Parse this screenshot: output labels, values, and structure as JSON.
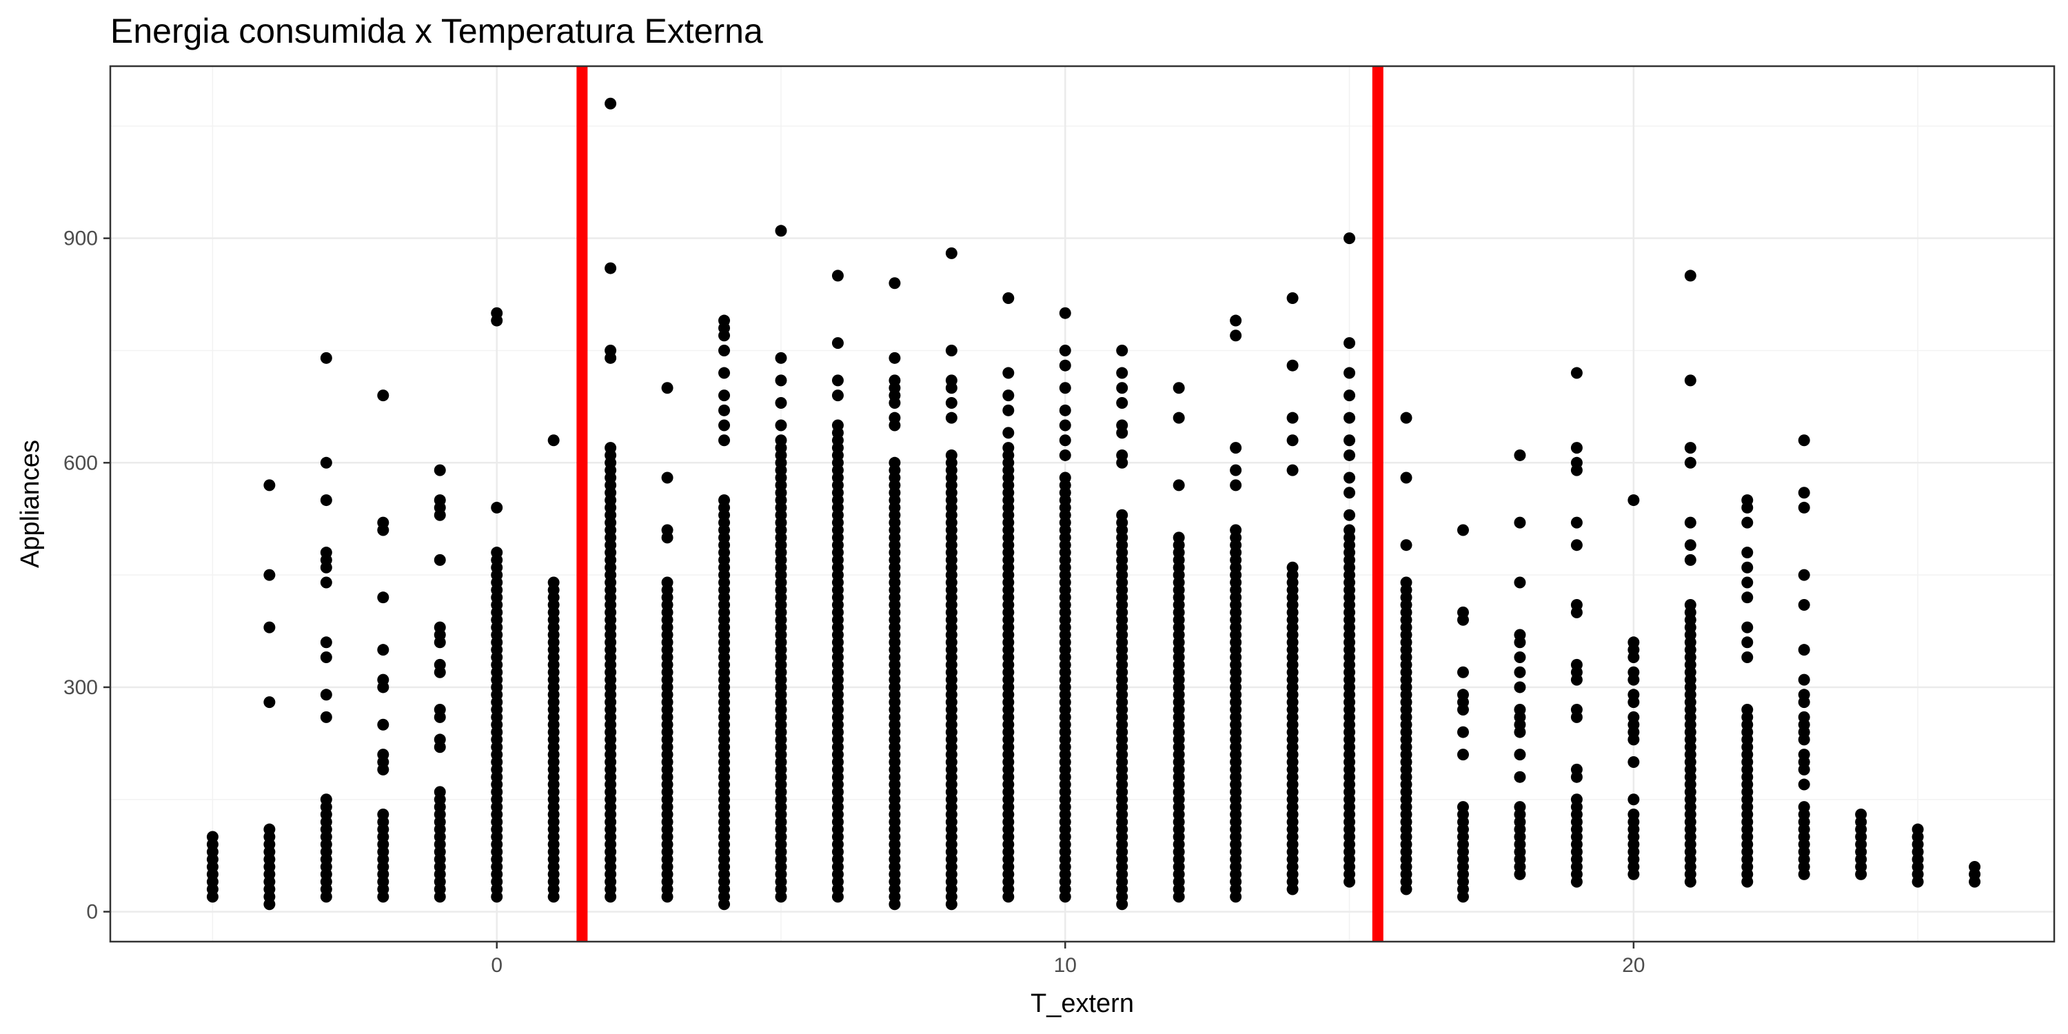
{
  "chart_data": {
    "type": "scatter",
    "title": "Energia consumida x Temperatura Externa",
    "xlabel": "T_extern",
    "ylabel": "Appliances",
    "xlim": [
      -6.8,
      27.4
    ],
    "ylim": [
      -40,
      1130
    ],
    "x_ticks": [
      0,
      10,
      20
    ],
    "x_tick_labels": [
      "0",
      "10",
      "20"
    ],
    "x_minor": [
      -5,
      5,
      15,
      25
    ],
    "y_ticks": [
      0,
      300,
      600,
      900
    ],
    "y_tick_labels": [
      "0",
      "300",
      "600",
      "900"
    ],
    "y_minor": [
      150,
      450,
      750,
      1050
    ],
    "grid": true,
    "theme": "bw",
    "point_color": "#000000",
    "vline_color": "#ff0000",
    "vlines": [
      1.5,
      15.5
    ],
    "columns": [
      {
        "x": -5,
        "min": 20,
        "max": 100,
        "outliers": []
      },
      {
        "x": -4,
        "min": 10,
        "max": 110,
        "outliers": [
          280,
          380,
          450,
          570
        ]
      },
      {
        "x": -3,
        "min": 20,
        "max": 150,
        "outliers": [
          260,
          290,
          340,
          360,
          440,
          460,
          470,
          480,
          550,
          600,
          740
        ]
      },
      {
        "x": -2,
        "min": 20,
        "max": 130,
        "outliers": [
          190,
          200,
          210,
          250,
          300,
          310,
          350,
          420,
          510,
          520,
          690
        ]
      },
      {
        "x": -1,
        "min": 20,
        "max": 160,
        "outliers": [
          220,
          230,
          260,
          270,
          320,
          330,
          360,
          370,
          380,
          470,
          530,
          540,
          550,
          590
        ]
      },
      {
        "x": 0,
        "min": 20,
        "max": 480,
        "outliers": [
          540,
          790,
          800
        ]
      },
      {
        "x": 1,
        "min": 20,
        "max": 440,
        "outliers": [
          630
        ]
      },
      {
        "x": 2,
        "min": 20,
        "max": 620,
        "outliers": [
          740,
          750,
          860,
          1080
        ]
      },
      {
        "x": 3,
        "min": 20,
        "max": 440,
        "outliers": [
          500,
          510,
          580,
          700
        ]
      },
      {
        "x": 4,
        "min": 10,
        "max": 550,
        "outliers": [
          630,
          650,
          670,
          690,
          720,
          750,
          770,
          780,
          790
        ]
      },
      {
        "x": 5,
        "min": 20,
        "max": 630,
        "outliers": [
          650,
          680,
          710,
          740,
          910
        ]
      },
      {
        "x": 6,
        "min": 20,
        "max": 650,
        "outliers": [
          690,
          710,
          760,
          850
        ]
      },
      {
        "x": 7,
        "min": 10,
        "max": 600,
        "outliers": [
          650,
          660,
          680,
          690,
          700,
          710,
          740,
          840
        ]
      },
      {
        "x": 8,
        "min": 10,
        "max": 610,
        "outliers": [
          660,
          680,
          700,
          710,
          750,
          880
        ]
      },
      {
        "x": 9,
        "min": 20,
        "max": 620,
        "outliers": [
          640,
          670,
          690,
          720,
          820
        ]
      },
      {
        "x": 10,
        "min": 20,
        "max": 580,
        "outliers": [
          610,
          630,
          650,
          670,
          700,
          730,
          750,
          800
        ]
      },
      {
        "x": 11,
        "min": 10,
        "max": 530,
        "outliers": [
          600,
          610,
          640,
          650,
          680,
          700,
          720,
          750
        ]
      },
      {
        "x": 12,
        "min": 20,
        "max": 500,
        "outliers": [
          570,
          660,
          700
        ]
      },
      {
        "x": 13,
        "min": 20,
        "max": 510,
        "outliers": [
          570,
          590,
          620,
          770,
          790
        ]
      },
      {
        "x": 14,
        "min": 30,
        "max": 460,
        "outliers": [
          590,
          630,
          660,
          730,
          820
        ]
      },
      {
        "x": 15,
        "min": 40,
        "max": 510,
        "outliers": [
          530,
          560,
          580,
          610,
          630,
          660,
          690,
          720,
          760,
          900
        ]
      },
      {
        "x": 16,
        "min": 30,
        "max": 440,
        "outliers": [
          490,
          580,
          660
        ]
      },
      {
        "x": 17,
        "min": 20,
        "max": 140,
        "outliers": [
          210,
          240,
          270,
          280,
          290,
          320,
          390,
          400,
          510
        ]
      },
      {
        "x": 18,
        "min": 50,
        "max": 140,
        "outliers": [
          180,
          210,
          240,
          250,
          260,
          270,
          300,
          320,
          340,
          360,
          370,
          440,
          520,
          610
        ]
      },
      {
        "x": 19,
        "min": 40,
        "max": 150,
        "outliers": [
          180,
          190,
          260,
          270,
          310,
          320,
          330,
          400,
          410,
          490,
          520,
          590,
          600,
          620,
          720
        ]
      },
      {
        "x": 20,
        "min": 50,
        "max": 130,
        "outliers": [
          150,
          200,
          230,
          240,
          250,
          260,
          280,
          290,
          310,
          320,
          340,
          350,
          360,
          550
        ]
      },
      {
        "x": 21,
        "min": 40,
        "max": 410,
        "outliers": [
          470,
          490,
          520,
          600,
          620,
          710,
          850
        ]
      },
      {
        "x": 22,
        "min": 40,
        "max": 270,
        "outliers": [
          340,
          360,
          380,
          420,
          440,
          460,
          480,
          520,
          540,
          550
        ]
      },
      {
        "x": 23,
        "min": 50,
        "max": 140,
        "outliers": [
          170,
          190,
          200,
          210,
          230,
          240,
          250,
          260,
          280,
          290,
          310,
          350,
          410,
          450,
          540,
          560,
          630
        ]
      },
      {
        "x": 24,
        "min": 50,
        "max": 130,
        "outliers": []
      },
      {
        "x": 25,
        "min": 40,
        "max": 110,
        "outliers": []
      },
      {
        "x": 26,
        "min": 40,
        "max": 60,
        "outliers": []
      }
    ]
  }
}
